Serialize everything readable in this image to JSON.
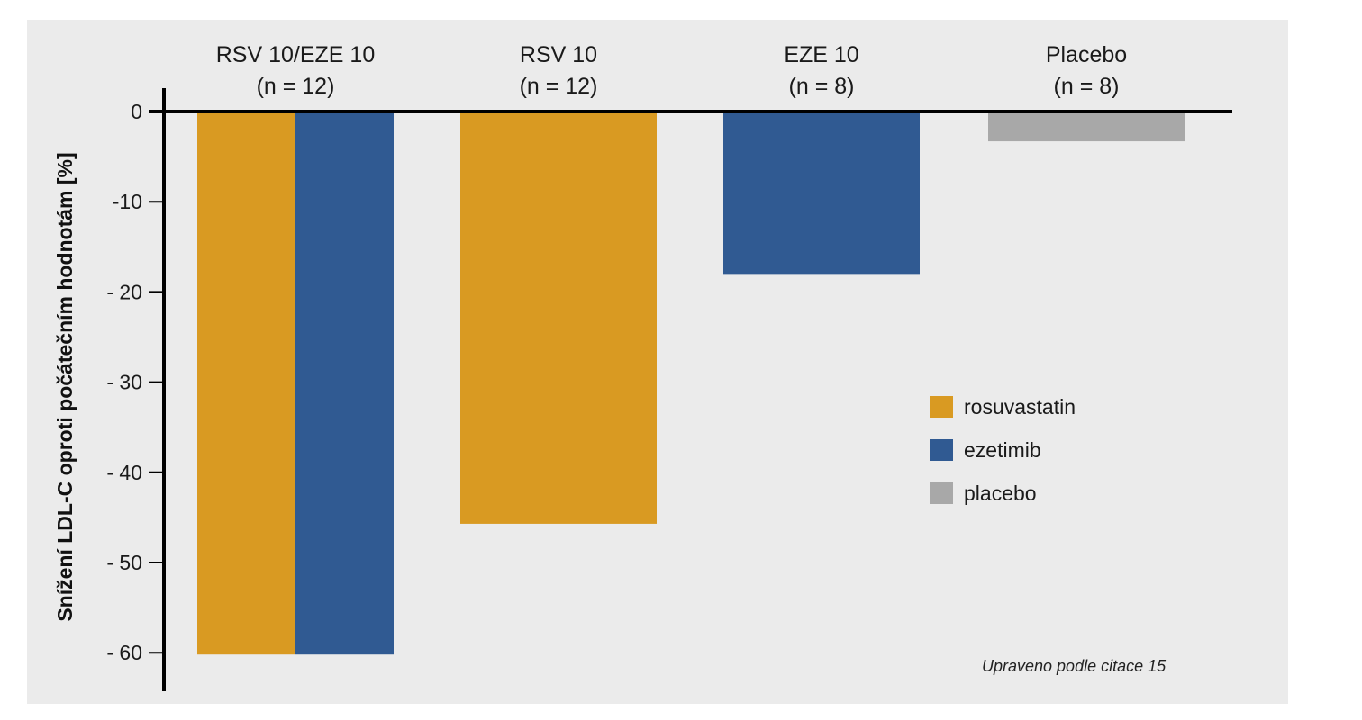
{
  "chart_data": {
    "type": "bar",
    "categories": [
      "RSV 10/EZE 10",
      "RSV 10",
      "EZE 10",
      "Placebo"
    ],
    "category_sublabels": [
      "(n = 12)",
      "(n = 12)",
      "(n = 8)",
      "(n = 8)"
    ],
    "series": [
      {
        "name": "rosuvastatin",
        "color": "#d99a22",
        "values": [
          -60.2,
          -45.7,
          null,
          null
        ]
      },
      {
        "name": "ezetimib",
        "color": "#305a92",
        "values": [
          -60.2,
          null,
          -18.0,
          null
        ]
      },
      {
        "name": "placebo",
        "color": "#a8a8a8",
        "values": [
          null,
          null,
          null,
          -3.3
        ]
      }
    ],
    "ylabel": "Snížení LDL-C oproti počátečním hodnotám [%]",
    "ylim": [
      -64,
      0
    ],
    "yticks": [
      0,
      -10,
      -20,
      -30,
      -40,
      -50,
      -60
    ],
    "ytick_labels": [
      "0",
      "-10",
      "- 20",
      "- 30",
      "- 40",
      "- 50",
      "- 60"
    ],
    "legend_position": "right",
    "grid": false,
    "annotation": "Upraveno podle citace 15"
  }
}
